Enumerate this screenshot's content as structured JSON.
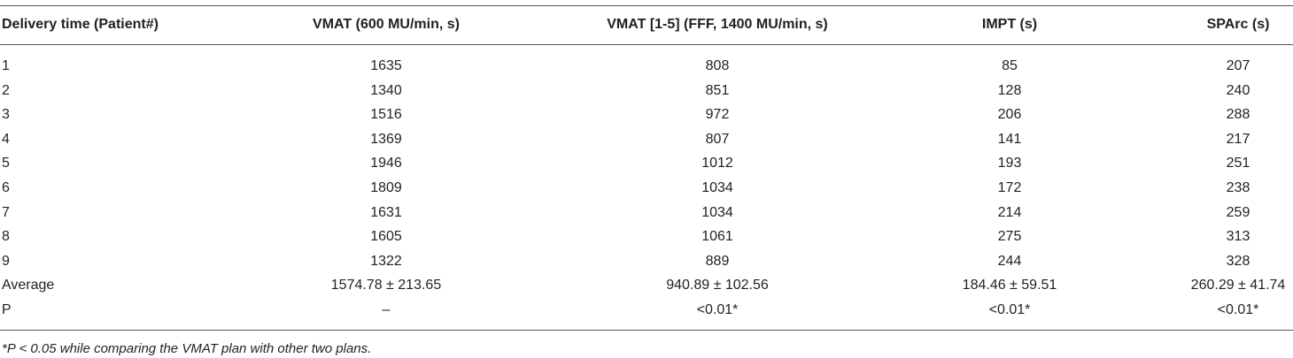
{
  "table": {
    "header": [
      "Delivery time (Patient#)",
      "VMAT (600 MU/min, s)",
      "VMAT [1-5] (FFF, 1400 MU/min, s)",
      "IMPT (s)",
      "SPArc (s)"
    ],
    "rows": [
      [
        "1",
        "1635",
        "808",
        "85",
        "207"
      ],
      [
        "2",
        "1340",
        "851",
        "128",
        "240"
      ],
      [
        "3",
        "1516",
        "972",
        "206",
        "288"
      ],
      [
        "4",
        "1369",
        "807",
        "141",
        "217"
      ],
      [
        "5",
        "1946",
        "1012",
        "193",
        "251"
      ],
      [
        "6",
        "1809",
        "1034",
        "172",
        "238"
      ],
      [
        "7",
        "1631",
        "1034",
        "214",
        "259"
      ],
      [
        "8",
        "1605",
        "1061",
        "275",
        "313"
      ],
      [
        "9",
        "1322",
        "889",
        "244",
        "328"
      ],
      [
        "Average",
        "1574.78 ± 213.65",
        "940.89 ± 102.56",
        "184.46 ± 59.51",
        "260.29 ± 41.74"
      ],
      [
        "P",
        "–",
        "<0.01*",
        "<0.01*",
        "<0.01*"
      ]
    ]
  },
  "footnote": "*P < 0.05 while comparing the VMAT plan with other two plans."
}
